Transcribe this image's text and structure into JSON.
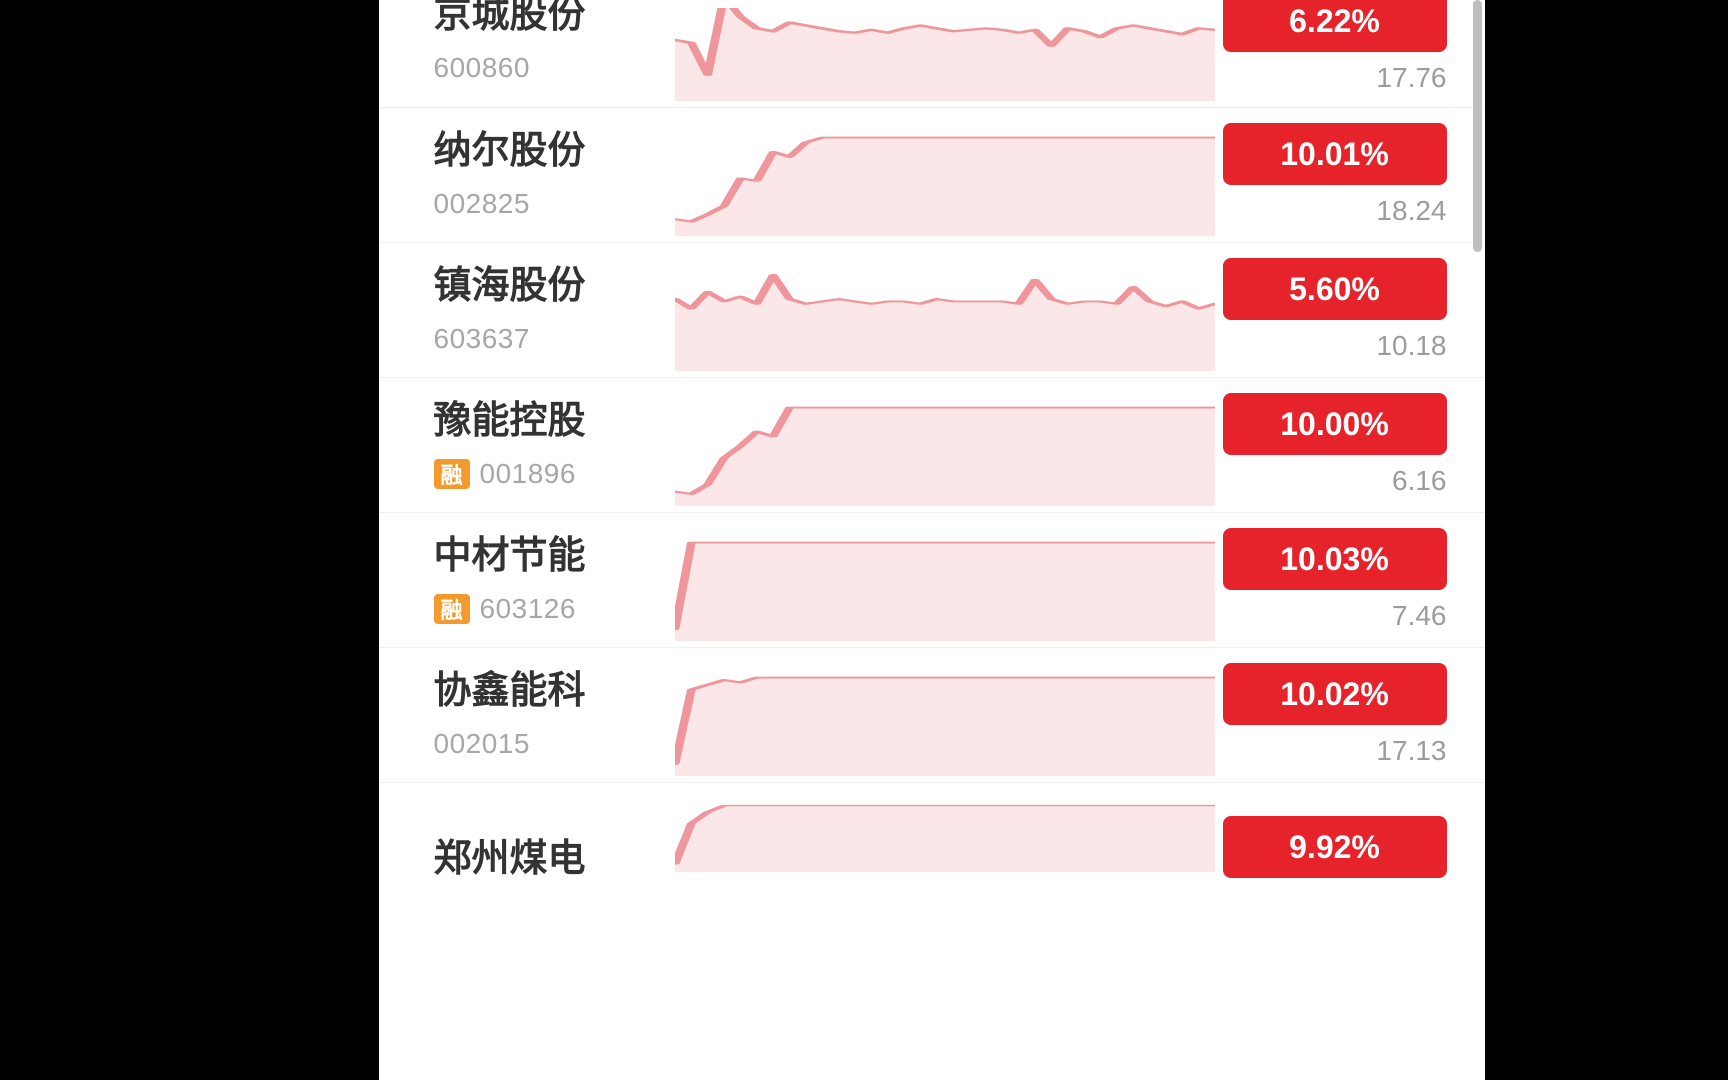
{
  "colors": {
    "page_bg": "#000000",
    "app_bg": "#ffffff",
    "row_divider": "#f0f0f0",
    "name_text": "#333333",
    "code_text": "#a7a7a7",
    "price_text": "#9c9c9c",
    "badge_up_bg": "#e6232a",
    "badge_text": "#ffffff",
    "rong_bg": "#f29a2e",
    "rong_text": "#ffffff",
    "spark_stroke": "#ef969c",
    "spark_fill": "#fbe6e8",
    "scrollbar": "#bfbfbf"
  },
  "rong_label": "融",
  "stocks": [
    {
      "name": "京城股份",
      "code": "600860",
      "has_rong": false,
      "change_pct": "6.22%",
      "price": "17.76",
      "spark": {
        "type": "line",
        "ymin": 0,
        "ymax": 100,
        "points": [
          42,
          40,
          18,
          72,
          58,
          50,
          48,
          54,
          52,
          50,
          48,
          47,
          49,
          47,
          50,
          52,
          50,
          48,
          49,
          50,
          49,
          47,
          49,
          38,
          50,
          48,
          44,
          50,
          52,
          50,
          48,
          46,
          50,
          49
        ]
      }
    },
    {
      "name": "纳尔股份",
      "code": "002825",
      "has_rong": false,
      "change_pct": "10.01%",
      "price": "18.24",
      "spark": {
        "type": "line",
        "ymin": 0,
        "ymax": 100,
        "points": [
          14,
          12,
          18,
          25,
          48,
          46,
          70,
          66,
          78,
          82,
          82,
          82,
          82,
          82,
          82,
          82,
          82,
          82,
          82,
          82,
          82,
          82,
          82,
          82,
          82,
          82,
          82,
          82,
          82,
          82,
          82,
          82,
          82,
          82
        ]
      }
    },
    {
      "name": "镇海股份",
      "code": "603637",
      "has_rong": false,
      "change_pct": "5.60%",
      "price": "10.18",
      "spark": {
        "type": "line",
        "ymin": 0,
        "ymax": 100,
        "points": [
          60,
          52,
          66,
          58,
          62,
          56,
          80,
          60,
          56,
          58,
          60,
          58,
          56,
          58,
          58,
          56,
          60,
          58,
          58,
          58,
          58,
          56,
          76,
          60,
          56,
          58,
          58,
          56,
          70,
          58,
          54,
          58,
          52,
          56
        ]
      }
    },
    {
      "name": "豫能控股",
      "code": "001896",
      "has_rong": true,
      "change_pct": "10.00%",
      "price": "6.16",
      "spark": {
        "type": "line",
        "ymin": 0,
        "ymax": 100,
        "points": [
          12,
          10,
          18,
          40,
          50,
          62,
          58,
          82,
          82,
          82,
          82,
          82,
          82,
          82,
          82,
          82,
          82,
          82,
          82,
          82,
          82,
          82,
          82,
          82,
          82,
          82,
          82,
          82,
          82,
          82,
          82,
          82,
          82,
          82
        ]
      }
    },
    {
      "name": "中材节能",
      "code": "603126",
      "has_rong": true,
      "change_pct": "10.03%",
      "price": "7.46",
      "spark": {
        "type": "line",
        "ymin": 0,
        "ymax": 100,
        "points": [
          10,
          82,
          82,
          82,
          82,
          82,
          82,
          82,
          82,
          82,
          82,
          82,
          82,
          82,
          82,
          82,
          82,
          82,
          82,
          82,
          82,
          82,
          82,
          82,
          82,
          82,
          82,
          82,
          82,
          82,
          82,
          82,
          82,
          82
        ]
      }
    },
    {
      "name": "协鑫能科",
      "code": "002015",
      "has_rong": false,
      "change_pct": "10.02%",
      "price": "17.13",
      "spark": {
        "type": "line",
        "ymin": 0,
        "ymax": 100,
        "points": [
          10,
          72,
          76,
          80,
          78,
          82,
          82,
          82,
          82,
          82,
          82,
          82,
          82,
          82,
          82,
          82,
          82,
          82,
          82,
          82,
          82,
          82,
          82,
          82,
          82,
          82,
          82,
          82,
          82,
          82,
          82,
          82,
          82,
          82
        ]
      }
    },
    {
      "name": "郑州煤电",
      "code": "",
      "has_rong": false,
      "change_pct": "9.92%",
      "price": "",
      "spark": {
        "type": "line",
        "ymin": 0,
        "ymax": 100,
        "points": [
          10,
          60,
          74,
          82,
          82,
          82,
          82,
          82,
          82,
          82,
          82,
          82,
          82,
          82,
          82,
          82,
          82,
          82,
          82,
          82,
          82,
          82,
          82,
          82,
          82,
          82,
          82,
          82,
          82,
          82,
          82,
          82,
          82,
          82
        ]
      }
    }
  ]
}
